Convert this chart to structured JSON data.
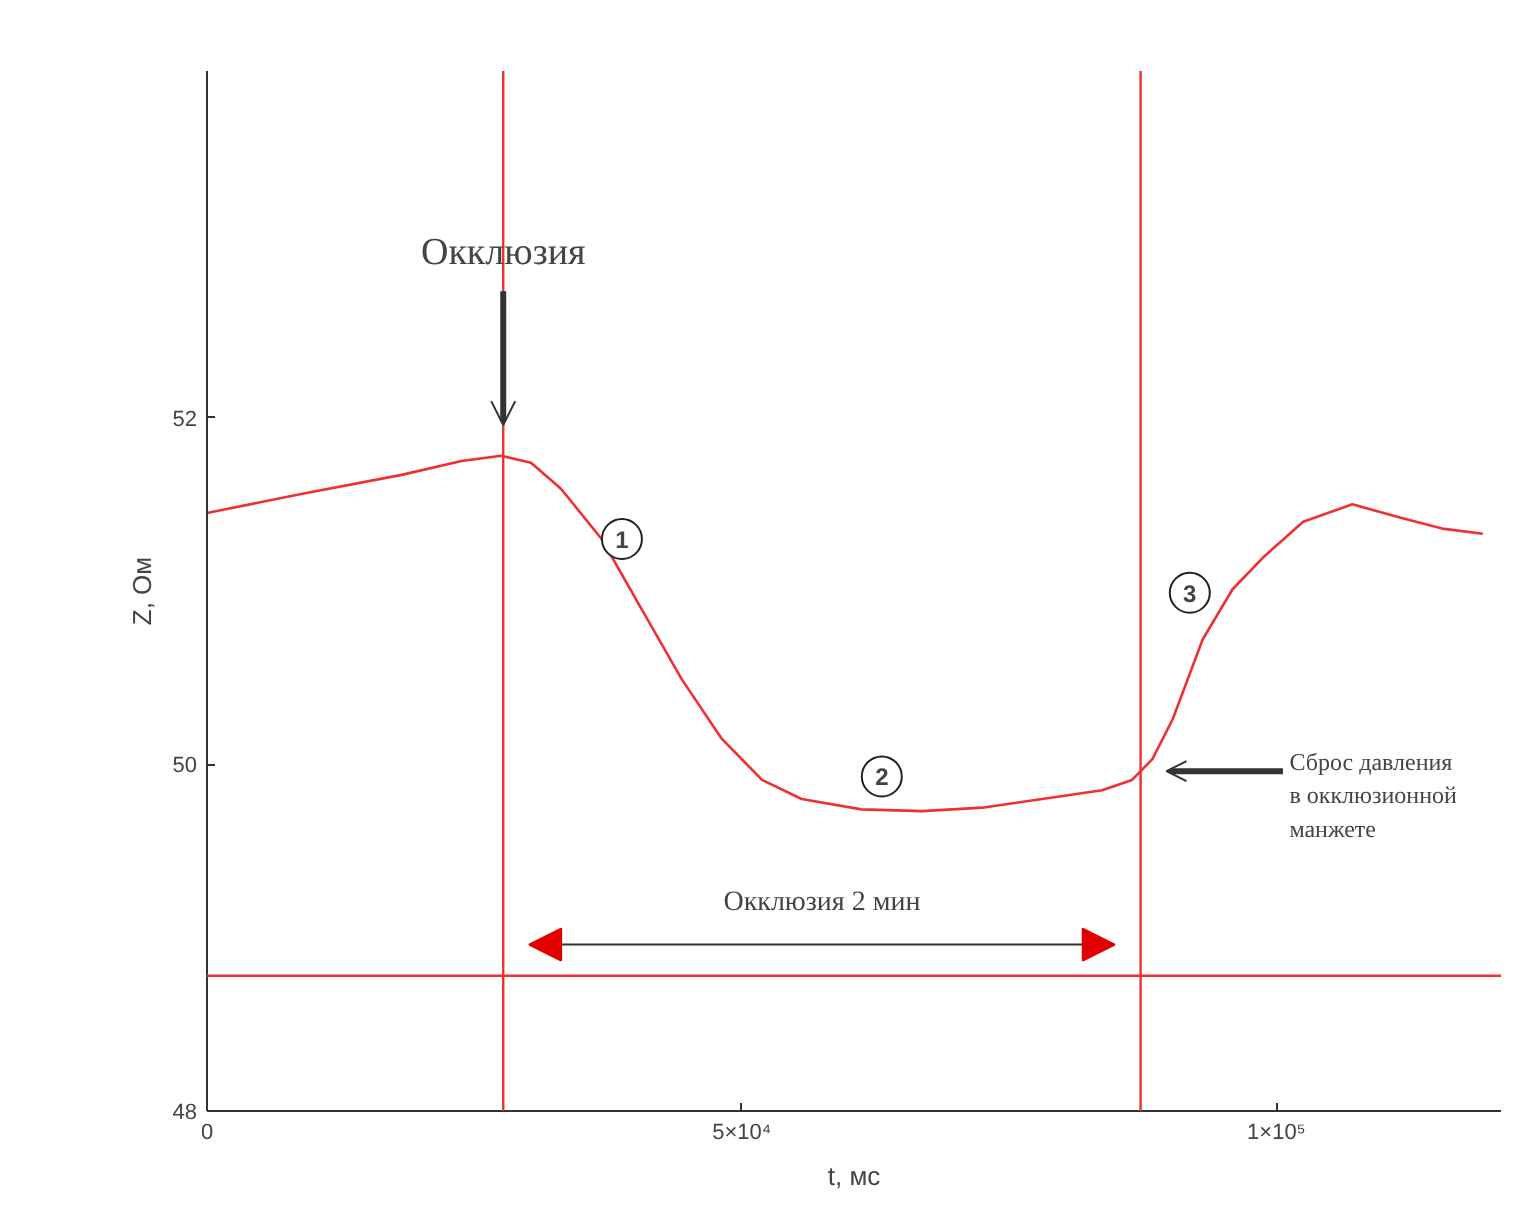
{
  "chart_data": {
    "type": "line",
    "xlabel": "t, мс",
    "ylabel": "Z, Ом",
    "x": [
      0,
      8800,
      18200,
      23800,
      27500,
      30300,
      33100,
      36900,
      40600,
      44400,
      48100,
      51900,
      55600,
      61200,
      66900,
      72500,
      78100,
      83700,
      86500,
      88400,
      90300,
      93100,
      95900,
      98700,
      102500,
      107100,
      111800,
      115500,
      119300
    ],
    "series": [
      {
        "color": "#f03030",
        "values": [
          51.45,
          51.56,
          51.67,
          51.75,
          51.78,
          51.74,
          51.59,
          51.3,
          50.9,
          50.49,
          50.15,
          49.91,
          49.8,
          49.74,
          49.73,
          49.75,
          49.8,
          49.85,
          49.91,
          50.03,
          50.26,
          50.72,
          51.01,
          51.19,
          51.4,
          51.5,
          51.42,
          51.36,
          51.33
        ]
      }
    ],
    "xlim": [
      0,
      121000
    ],
    "ylim": [
      48,
      54
    ],
    "xticks": [
      {
        "value": 0,
        "label": "0"
      },
      {
        "value": 50000,
        "label": "5×10⁴"
      },
      {
        "value": 100000,
        "label": "1×10⁵"
      }
    ],
    "yticks": [
      48,
      50,
      52
    ],
    "grid": false,
    "ref_lines": [
      {
        "axis": "x",
        "value": 27700,
        "color": "#f03030"
      },
      {
        "axis": "x",
        "value": 87300,
        "color": "#f03030"
      },
      {
        "axis": "y",
        "value": 48.78,
        "color": "#f03030"
      }
    ],
    "annotations": [
      {
        "text": "Окклюзия",
        "x": 27700,
        "y": 52.95
      },
      {
        "text": "1",
        "x": 38800,
        "y": 51.3
      },
      {
        "text": "2",
        "x": 63100,
        "y": 49.93
      },
      {
        "text": "3",
        "x": 91900,
        "y": 50.99
      },
      "Окклюзия 2 мин",
      "Сброс давления\nв окклюзионной\nманжете"
    ]
  }
}
